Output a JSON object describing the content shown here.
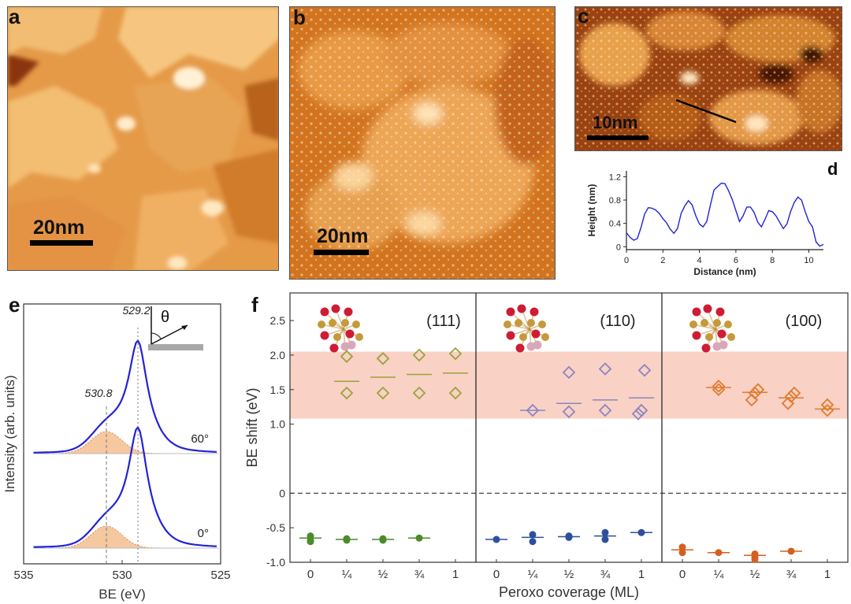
{
  "panels": {
    "a": {
      "label": "a",
      "scalebar": "20nm"
    },
    "b": {
      "label": "b",
      "scalebar": "20nm"
    },
    "c": {
      "label": "c",
      "scalebar": "10nm"
    },
    "d": {
      "label": "d"
    },
    "e": {
      "label": "e"
    },
    "f": {
      "label": "f"
    }
  },
  "colors": {
    "stm_dark": "#7a2c05",
    "stm_mid": "#c8641c",
    "stm_light": "#f4c27a",
    "stm_bright": "#fff4dc",
    "line_blue": "#2323d6",
    "fill_orange": "#f5c8a0",
    "band_pink": "#f8c9bb",
    "olive": "#9aa33c",
    "purple": "#8a86c0",
    "orange": "#e07b2e",
    "green": "#4d8a2a",
    "blue": "#2d4f9b",
    "orange_dark": "#d4601f",
    "atom_red": "#cf1c35",
    "atom_gold": "#c49a3a",
    "atom_pink": "#d9a8b8"
  },
  "chart_data": [
    {
      "id": "d",
      "type": "line",
      "xlabel": "Distance (nm)",
      "ylabel": "Height (nm)",
      "xlim": [
        0,
        10.8
      ],
      "ylim": [
        -0.05,
        1.3
      ],
      "xticks": [
        "0",
        "2",
        "4",
        "6",
        "8",
        "10"
      ],
      "yticks": [
        "0",
        "0.4",
        "0.8",
        "1.2"
      ],
      "x": [
        0,
        0.2,
        0.4,
        0.6,
        0.8,
        1.0,
        1.2,
        1.4,
        1.6,
        1.8,
        2.0,
        2.2,
        2.4,
        2.6,
        2.8,
        3.0,
        3.2,
        3.4,
        3.6,
        3.8,
        4.0,
        4.2,
        4.4,
        4.6,
        4.8,
        5.0,
        5.2,
        5.4,
        5.6,
        5.8,
        6.0,
        6.2,
        6.4,
        6.6,
        6.8,
        7.0,
        7.2,
        7.4,
        7.6,
        7.8,
        8.0,
        8.2,
        8.4,
        8.6,
        8.8,
        9.0,
        9.2,
        9.4,
        9.6,
        9.8,
        10.0,
        10.2,
        10.4,
        10.6,
        10.8
      ],
      "y": [
        0.22,
        0.18,
        0.1,
        0.12,
        0.35,
        0.55,
        0.65,
        0.68,
        0.62,
        0.55,
        0.5,
        0.4,
        0.28,
        0.25,
        0.3,
        0.55,
        0.72,
        0.78,
        0.7,
        0.55,
        0.38,
        0.32,
        0.45,
        0.7,
        0.95,
        1.05,
        1.08,
        1.06,
        0.98,
        0.8,
        0.6,
        0.45,
        0.52,
        0.66,
        0.7,
        0.58,
        0.4,
        0.36,
        0.46,
        0.6,
        0.62,
        0.52,
        0.4,
        0.33,
        0.38,
        0.58,
        0.78,
        0.84,
        0.78,
        0.62,
        0.42,
        0.32,
        0.1,
        0.0,
        0.02
      ]
    },
    {
      "id": "e",
      "type": "line",
      "xlabel": "BE (eV)",
      "ylabel": "Intensity (arb. units)",
      "xlim": [
        535,
        525
      ],
      "xticks": [
        "535",
        "530",
        "525"
      ],
      "series": [
        {
          "name": "60°",
          "peak_main": 529.2,
          "peak_shoulder": 530.8
        },
        {
          "name": "0°",
          "peak_main": 529.2,
          "peak_shoulder": 530.8
        }
      ],
      "annotations": [
        "529.2",
        "530.8",
        "θ"
      ]
    },
    {
      "id": "f",
      "type": "scatter",
      "xlabel": "Peroxo coverage (ML)",
      "ylabel": "BE shift (eV)",
      "ylim": [
        -1.0,
        2.9
      ],
      "yticks": [
        "-1.0",
        "-0.5",
        "0",
        "1.0",
        "1.5",
        "2.0",
        "2.5"
      ],
      "xticks": [
        "0",
        "¼",
        "½",
        "¾",
        "1"
      ],
      "band": [
        1.08,
        2.05
      ],
      "subpanels": [
        {
          "name": "(111)",
          "open": [
            [
              1,
              [
                1.45,
                1.98
              ]
            ],
            [
              2,
              [
                1.45,
                1.95
              ]
            ],
            [
              3,
              [
                1.45,
                2.0
              ]
            ],
            [
              4,
              [
                1.45,
                2.02
              ]
            ]
          ],
          "open_means": [
            [
              1,
              1.62
            ],
            [
              2,
              1.68
            ],
            [
              3,
              1.72
            ],
            [
              4,
              1.74
            ]
          ],
          "filled": [
            [
              0,
              [
                -0.62,
                -0.68,
                -0.7
              ]
            ],
            [
              1,
              [
                -0.66,
                -0.68
              ]
            ],
            [
              2,
              [
                -0.66,
                -0.68
              ]
            ],
            [
              3,
              [
                -0.65
              ]
            ]
          ],
          "filled_means": [
            [
              0,
              -0.65
            ],
            [
              1,
              -0.67
            ],
            [
              2,
              -0.67
            ],
            [
              3,
              -0.65
            ]
          ]
        },
        {
          "name": "(110)",
          "open": [
            [
              1,
              [
                1.2
              ]
            ],
            [
              2,
              [
                1.18,
                1.75
              ]
            ],
            [
              3,
              [
                1.2,
                1.8
              ]
            ],
            [
              4,
              [
                1.15,
                1.2,
                1.78
              ]
            ]
          ],
          "open_means": [
            [
              1,
              1.2
            ],
            [
              2,
              1.3
            ],
            [
              3,
              1.35
            ],
            [
              4,
              1.38
            ]
          ],
          "filled": [
            [
              0,
              [
                -0.67
              ]
            ],
            [
              1,
              [
                -0.6,
                -0.7
              ]
            ],
            [
              2,
              [
                -0.62,
                -0.64
              ]
            ],
            [
              3,
              [
                -0.57,
                -0.67
              ]
            ],
            [
              4,
              [
                -0.57
              ]
            ]
          ],
          "filled_means": [
            [
              0,
              -0.67
            ],
            [
              1,
              -0.64
            ],
            [
              2,
              -0.63
            ],
            [
              3,
              -0.62
            ],
            [
              4,
              -0.57
            ]
          ]
        },
        {
          "name": "(100)",
          "open": [
            [
              1,
              [
                1.5,
                1.55
              ]
            ],
            [
              2,
              [
                1.35,
                1.45,
                1.5
              ]
            ],
            [
              3,
              [
                1.3,
                1.4,
                1.45
              ]
            ],
            [
              4,
              [
                1.2,
                1.28
              ]
            ]
          ],
          "open_means": [
            [
              1,
              1.53
            ],
            [
              2,
              1.46
            ],
            [
              3,
              1.38
            ],
            [
              4,
              1.22
            ]
          ],
          "filled": [
            [
              0,
              [
                -0.78,
                -0.86
              ]
            ],
            [
              1,
              [
                -0.86
              ]
            ],
            [
              2,
              [
                -0.88,
                -0.93,
                -0.96
              ]
            ],
            [
              3,
              [
                -0.84
              ]
            ]
          ],
          "filled_means": [
            [
              0,
              -0.82
            ],
            [
              1,
              -0.86
            ],
            [
              2,
              -0.9
            ],
            [
              3,
              -0.84
            ]
          ]
        }
      ]
    }
  ]
}
